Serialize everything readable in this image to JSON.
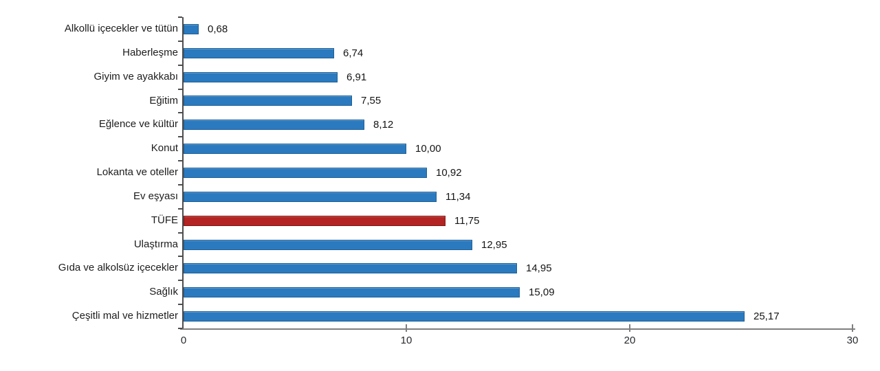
{
  "chart_data": {
    "type": "bar",
    "orientation": "horizontal",
    "title": "",
    "xlabel": "",
    "ylabel": "",
    "categories": [
      "Alkollü içecekler ve tütün",
      "Haberleşme",
      "Giyim ve ayakkabı",
      "Eğitim",
      "Eğlence ve kültür",
      "Konut",
      "Lokanta ve oteller",
      "Ev eşyası",
      "TÜFE",
      "Ulaştırma",
      "Gıda ve alkolsüz içecekler",
      "Sağlık",
      "Çeşitli mal ve hizmetler"
    ],
    "values": [
      0.68,
      6.74,
      6.91,
      7.55,
      8.12,
      10.0,
      10.92,
      11.34,
      11.75,
      12.95,
      14.95,
      15.09,
      25.17
    ],
    "value_labels": [
      "0,68",
      "6,74",
      "6,91",
      "7,55",
      "8,12",
      "10,00",
      "10,92",
      "11,34",
      "11,75",
      "12,95",
      "14,95",
      "15,09",
      "25,17"
    ],
    "highlight_category": "TÜFE",
    "bar_color": "#2b7abf",
    "bar_border_color": "#1d5f96",
    "highlight_color": "#b32422",
    "highlight_border_color": "#811715",
    "axis_color": "#7f7f7f",
    "xlim": [
      0,
      30
    ],
    "x_tick_values": [
      0,
      10,
      20,
      30
    ],
    "x_tick_labels": [
      "0",
      "10",
      "20",
      "30"
    ],
    "grid": "off",
    "legend": "none"
  }
}
